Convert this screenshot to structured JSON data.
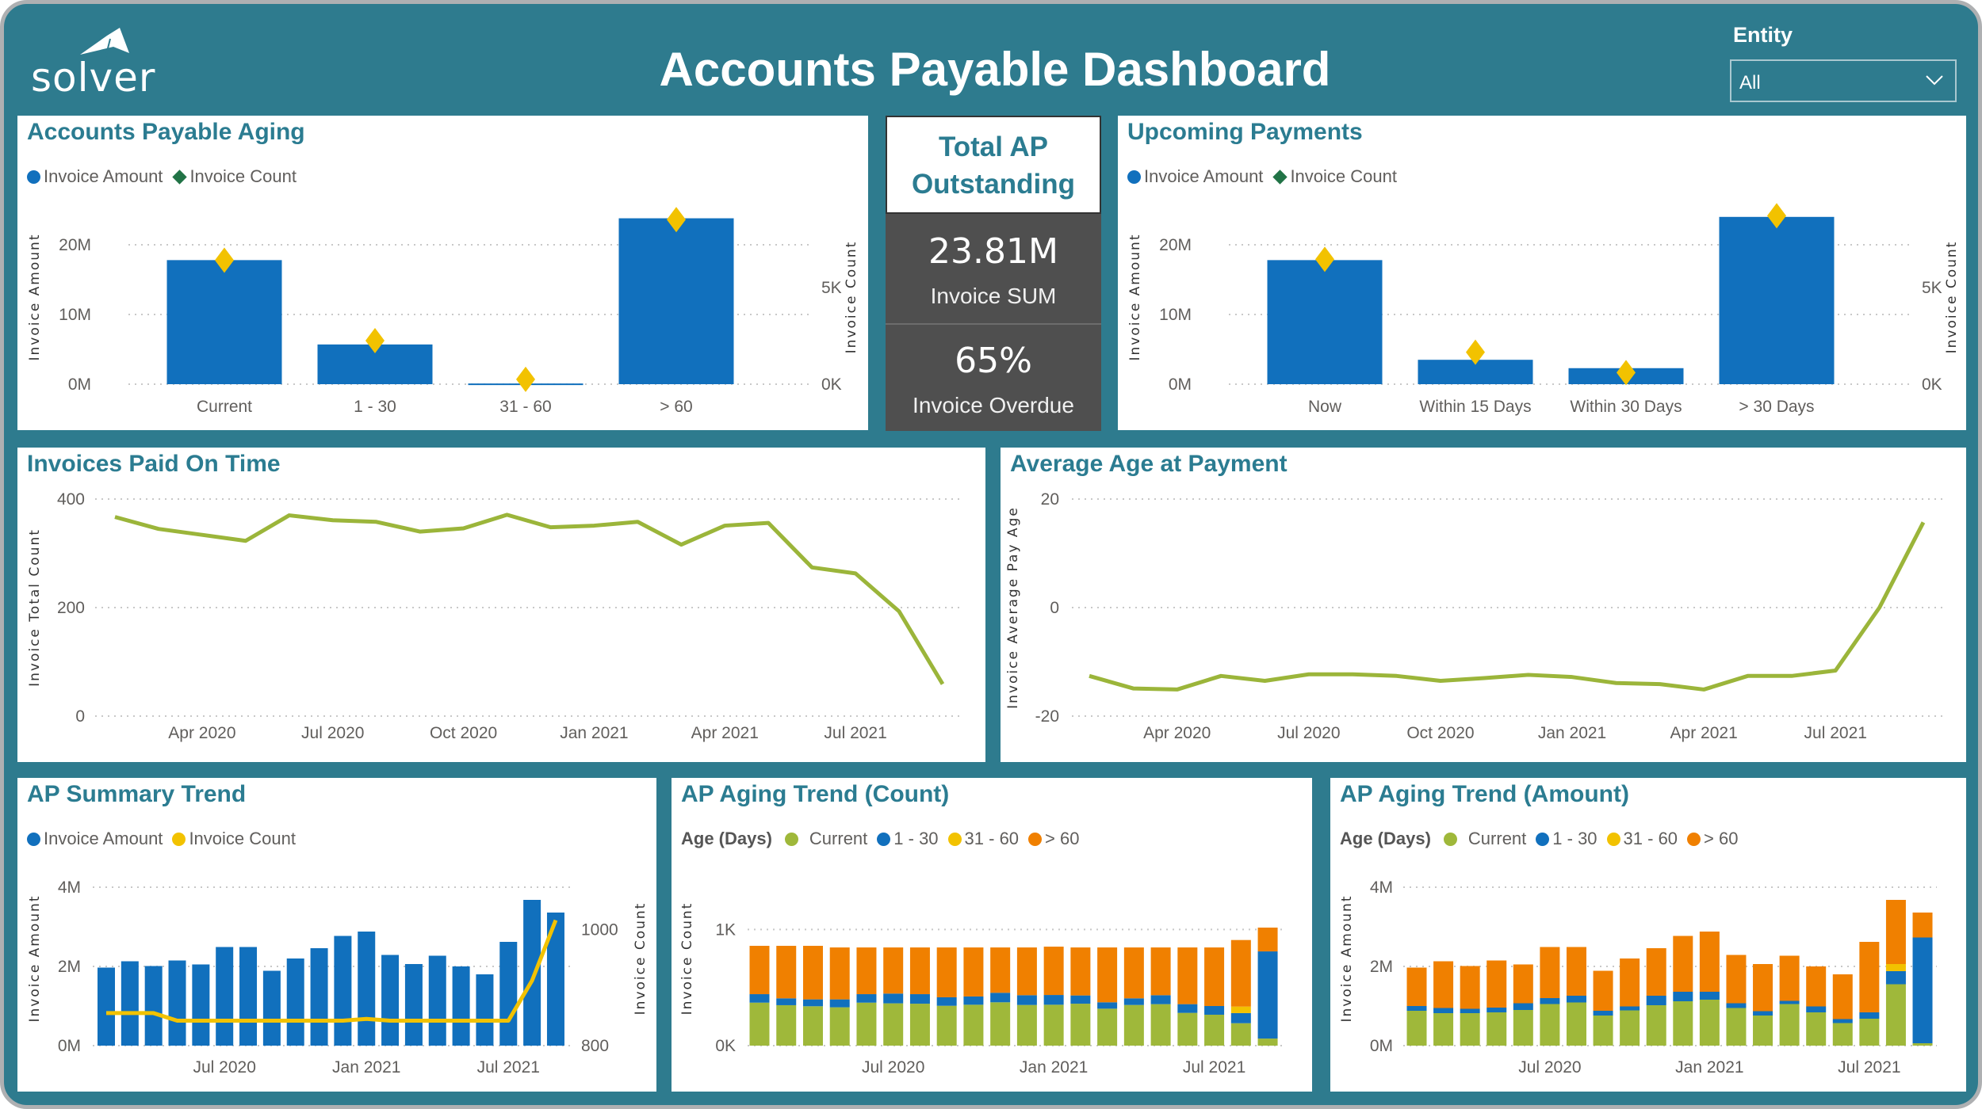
{
  "header": {
    "logo_text": "solver",
    "title": "Accounts Payable Dashboard",
    "entity_label": "Entity",
    "entity_value": "All"
  },
  "kpi": {
    "title": "Total AP Outstanding",
    "sum_value": "23.81M",
    "sum_label": "Invoice SUM",
    "overdue_value": "65%",
    "overdue_label": "Invoice Overdue"
  },
  "colors": {
    "background": "#2e7b8e",
    "title": "#2b7c91",
    "blue": "#1170bd",
    "yellow": "#f2c200",
    "green_marker": "#217346",
    "current": "#9fb83a",
    "d1_30": "#1170bd",
    "d31_60": "#f2c200",
    "over60": "#f08000",
    "line": "#9bb53a"
  },
  "chart_data": [
    {
      "type": "bar",
      "title": "Accounts Payable Aging",
      "categories": [
        "Current",
        "1 - 30",
        "31 - 60",
        "> 60"
      ],
      "series": [
        {
          "name": "Invoice Amount",
          "values": [
            17.8,
            5.7,
            0.1,
            23.8
          ],
          "unit": "M",
          "mark": "bar",
          "color": "#1170bd",
          "legend_color": "#1170bd"
        },
        {
          "name": "Invoice Count",
          "values": [
            6.4,
            2.25,
            0.25,
            8.5
          ],
          "unit": "K",
          "mark": "diamond",
          "color": "#f2c200",
          "legend_color": "#217346"
        }
      ],
      "ylabel": "Invoice Amount",
      "y2label": "Invoice Count",
      "ylim": [
        0,
        25
      ],
      "y2lim": [
        0,
        9
      ],
      "yticks": [
        0,
        10,
        20
      ],
      "ytick_labels": [
        "0M",
        "10M",
        "20M"
      ],
      "y2ticks": [
        0,
        5
      ],
      "y2tick_labels": [
        "0K",
        "5K"
      ],
      "grid": true,
      "legend": "top-left"
    },
    {
      "type": "bar",
      "title": "Upcoming Payments",
      "categories": [
        "Now",
        "Within 15 Days",
        "Within 30 Days",
        "> 30 Days"
      ],
      "series": [
        {
          "name": "Invoice Amount",
          "values": [
            17.8,
            3.5,
            2.3,
            24.0
          ],
          "unit": "M",
          "mark": "bar",
          "color": "#1170bd",
          "legend_color": "#1170bd"
        },
        {
          "name": "Invoice Count",
          "values": [
            6.45,
            1.65,
            0.6,
            8.7
          ],
          "unit": "K",
          "mark": "diamond",
          "color": "#f2c200",
          "legend_color": "#217346"
        }
      ],
      "ylabel": "Invoice Amount",
      "y2label": "Invoice Count",
      "ylim": [
        0,
        25
      ],
      "y2lim": [
        0,
        9
      ],
      "yticks": [
        0,
        10,
        20
      ],
      "ytick_labels": [
        "0M",
        "10M",
        "20M"
      ],
      "y2ticks": [
        0,
        5
      ],
      "y2tick_labels": [
        "0K",
        "5K"
      ],
      "grid": true,
      "legend": "top-left"
    },
    {
      "type": "line",
      "title": "Invoices Paid On Time",
      "x": [
        "2020-02",
        "2020-03",
        "2020-04",
        "2020-05",
        "2020-06",
        "2020-07",
        "2020-08",
        "2020-09",
        "2020-10",
        "2020-11",
        "2020-12",
        "2021-01",
        "2021-02",
        "2021-03",
        "2021-04",
        "2021-05",
        "2021-06",
        "2021-07",
        "2021-08",
        "2021-09"
      ],
      "values": [
        367,
        345,
        334,
        323,
        370,
        361,
        358,
        340,
        346,
        371,
        348,
        351,
        358,
        316,
        351,
        356,
        274,
        263,
        193,
        59
      ],
      "ylabel": "Invoice Total Count",
      "ylim": [
        0,
        400
      ],
      "yticks": [
        0,
        200,
        400
      ],
      "ytick_labels": [
        "0",
        "200",
        "400"
      ],
      "xtick_index": [
        2,
        5,
        8,
        11,
        14,
        17
      ],
      "xtick_labels": [
        "Apr 2020",
        "Jul 2020",
        "Oct 2020",
        "Jan 2021",
        "Apr 2021",
        "Jul 2021"
      ],
      "grid": true
    },
    {
      "type": "line",
      "title": "Average Age at Payment",
      "x": [
        "2020-02",
        "2020-03",
        "2020-04",
        "2020-05",
        "2020-06",
        "2020-07",
        "2020-08",
        "2020-09",
        "2020-10",
        "2020-11",
        "2020-12",
        "2021-01",
        "2021-02",
        "2021-03",
        "2021-04",
        "2021-05",
        "2021-06",
        "2021-07",
        "2021-08",
        "2021-09"
      ],
      "values": [
        -12.6,
        -14.9,
        -15.1,
        -12.6,
        -13.5,
        -12.3,
        -12.3,
        -12.6,
        -13.5,
        -13.0,
        -12.4,
        -12.8,
        -13.9,
        -14.1,
        -15.1,
        -12.6,
        -12.6,
        -11.6,
        0,
        15.7
      ],
      "ylabel": "Invoice Average Pay Age",
      "ylim": [
        -20,
        20
      ],
      "yticks": [
        -20,
        0,
        20
      ],
      "ytick_labels": [
        "-20",
        "0",
        "20"
      ],
      "xtick_index": [
        2,
        5,
        8,
        11,
        14,
        17
      ],
      "xtick_labels": [
        "Apr 2020",
        "Jul 2020",
        "Oct 2020",
        "Jan 2021",
        "Apr 2021",
        "Jul 2021"
      ],
      "grid": true
    },
    {
      "type": "bar",
      "title": "AP Summary Trend",
      "x": [
        "2020-02",
        "2020-03",
        "2020-04",
        "2020-05",
        "2020-06",
        "2020-07",
        "2020-08",
        "2020-09",
        "2020-10",
        "2020-11",
        "2020-12",
        "2021-01",
        "2021-02",
        "2021-03",
        "2021-04",
        "2021-05",
        "2021-06",
        "2021-07",
        "2021-08",
        "2021-09"
      ],
      "series": [
        {
          "name": "Invoice Amount",
          "mark": "bar",
          "color": "#1170bd",
          "unit": "M",
          "values": [
            1.97,
            2.13,
            2.01,
            2.15,
            2.05,
            2.49,
            2.49,
            1.89,
            2.2,
            2.46,
            2.77,
            2.88,
            2.29,
            2.06,
            2.27,
            2.0,
            1.8,
            2.62,
            3.68,
            3.36
          ]
        },
        {
          "name": "Invoice Count",
          "mark": "line",
          "color": "#f2c200",
          "values": [
            856,
            856,
            856,
            843,
            843,
            843,
            843,
            843,
            843,
            843,
            843,
            846,
            843,
            843,
            843,
            843,
            843,
            843,
            912,
            1016
          ]
        }
      ],
      "ylabel": "Invoice Amount",
      "y2label": "Invoice Count",
      "ylim": [
        0,
        4.4
      ],
      "y2lim": [
        800,
        1100
      ],
      "yticks": [
        0,
        2,
        4
      ],
      "ytick_labels": [
        "0M",
        "2M",
        "4M"
      ],
      "y2ticks": [
        800,
        1000
      ],
      "y2tick_labels": [
        "800",
        "1000"
      ],
      "xtick_index": [
        5,
        11,
        17
      ],
      "xtick_labels": [
        "Jul 2020",
        "Jan 2021",
        "Jul 2021"
      ],
      "grid": true,
      "legend": "top-left"
    },
    {
      "type": "bar",
      "stacked": true,
      "title": "AP Aging Trend (Count)",
      "legend_title": "Age (Days)",
      "x": [
        "2020-02",
        "2020-03",
        "2020-04",
        "2020-05",
        "2020-06",
        "2020-07",
        "2020-08",
        "2020-09",
        "2020-10",
        "2020-11",
        "2020-12",
        "2021-01",
        "2021-02",
        "2021-03",
        "2021-04",
        "2021-05",
        "2021-06",
        "2021-07",
        "2021-08",
        "2021-09"
      ],
      "series": [
        {
          "name": "Current",
          "color": "#9fb83a",
          "values": [
            370,
            348,
            339,
            330,
            370,
            364,
            361,
            343,
            352,
            373,
            350,
            352,
            361,
            318,
            350,
            357,
            282,
            266,
            193,
            61
          ]
        },
        {
          "name": "1 - 30",
          "color": "#1170bd",
          "values": [
            73,
            59,
            59,
            68,
            73,
            84,
            82,
            73,
            71,
            82,
            84,
            84,
            71,
            55,
            57,
            77,
            75,
            75,
            87,
            750
          ]
        },
        {
          "name": "31 - 60",
          "color": "#f2c200",
          "values": [
            0,
            0,
            0,
            0,
            0,
            0,
            0,
            0,
            0,
            0,
            0,
            0,
            0,
            0,
            0,
            0,
            0,
            0,
            56,
            0
          ]
        },
        {
          "name": "> 60",
          "color": "#f08000",
          "values": [
            416,
            452,
            461,
            447,
            402,
            397,
            402,
            429,
            422,
            390,
            411,
            416,
            413,
            472,
            438,
            411,
            488,
            504,
            573,
            205
          ]
        }
      ],
      "ylabel": "Invoice Count",
      "ylim": [
        0,
        1500
      ],
      "yticks": [
        0,
        1000
      ],
      "ytick_labels": [
        "0K",
        "1K"
      ],
      "xtick_index": [
        5,
        11,
        17
      ],
      "xtick_labels": [
        "Jul 2020",
        "Jan 2021",
        "Jul 2021"
      ],
      "grid": true,
      "legend": "top-left"
    },
    {
      "type": "bar",
      "stacked": true,
      "title": "AP Aging Trend (Amount)",
      "legend_title": "Age (Days)",
      "x": [
        "2020-02",
        "2020-03",
        "2020-04",
        "2020-05",
        "2020-06",
        "2020-07",
        "2020-08",
        "2020-09",
        "2020-10",
        "2020-11",
        "2020-12",
        "2021-01",
        "2021-02",
        "2021-03",
        "2021-04",
        "2021-05",
        "2021-06",
        "2021-07",
        "2021-08",
        "2021-09"
      ],
      "series": [
        {
          "name": "Current",
          "color": "#9fb83a",
          "values": [
            0.88,
            0.82,
            0.82,
            0.84,
            0.9,
            1.05,
            1.09,
            0.76,
            0.89,
            1.02,
            1.12,
            1.16,
            0.95,
            0.76,
            1.05,
            0.84,
            0.57,
            0.68,
            1.55,
            0.06
          ]
        },
        {
          "name": "1 - 30",
          "color": "#1170bd",
          "values": [
            0.12,
            0.13,
            0.11,
            0.12,
            0.17,
            0.15,
            0.17,
            0.12,
            0.1,
            0.24,
            0.24,
            0.2,
            0.12,
            0.11,
            0.08,
            0.15,
            0.1,
            0.16,
            0.33,
            2.67
          ]
        },
        {
          "name": "31 - 60",
          "color": "#f2c200",
          "values": [
            0,
            0,
            0,
            0,
            0,
            0,
            0,
            0,
            0,
            0,
            0,
            0,
            0,
            0,
            0,
            0,
            0,
            0,
            0.18,
            0
          ]
        },
        {
          "name": "> 60",
          "color": "#f08000",
          "values": [
            0.97,
            1.18,
            1.08,
            1.19,
            0.98,
            1.29,
            1.23,
            1.01,
            1.21,
            1.2,
            1.41,
            1.52,
            1.22,
            1.19,
            1.14,
            1.01,
            1.13,
            1.78,
            1.62,
            0.63
          ]
        }
      ],
      "ylabel": "Invoice Amount",
      "ylim": [
        0,
        4.4
      ],
      "yticks": [
        0,
        2,
        4
      ],
      "ytick_labels": [
        "0M",
        "2M",
        "4M"
      ],
      "xtick_index": [
        5,
        11,
        17
      ],
      "xtick_labels": [
        "Jul 2020",
        "Jan 2021",
        "Jul 2021"
      ],
      "grid": true,
      "legend": "top-left"
    }
  ]
}
